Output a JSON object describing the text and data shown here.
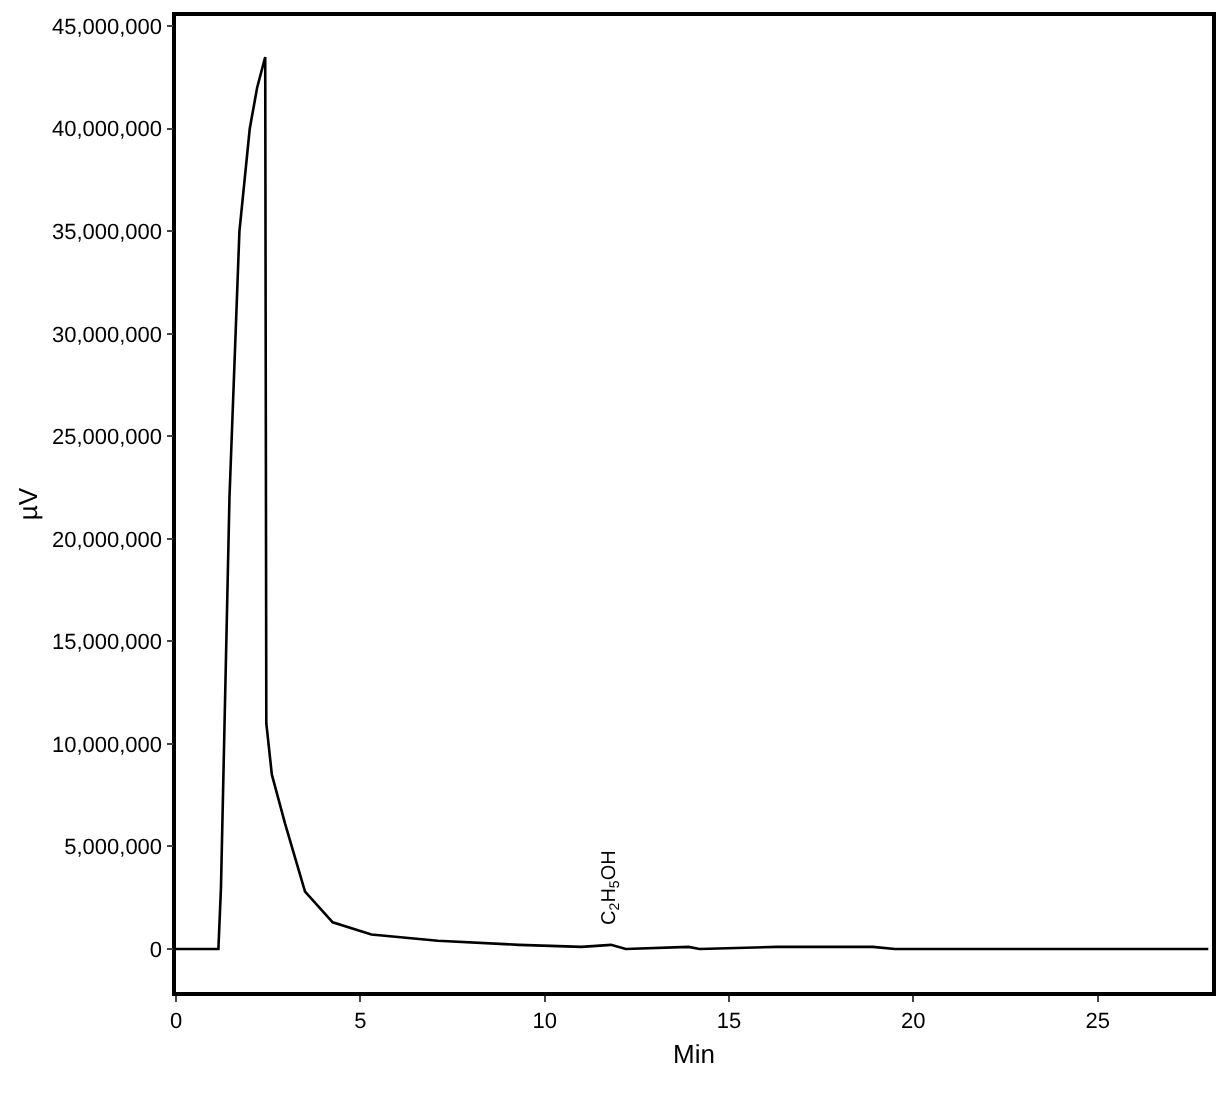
{
  "chart_data": {
    "type": "line",
    "xlabel": "Min",
    "ylabel": "µV",
    "x": [
      0,
      1.15,
      1.22,
      1.45,
      1.72,
      2.0,
      2.2,
      2.42,
      2.45,
      2.6,
      2.96,
      3.5,
      4.25,
      5.3,
      7.1,
      9.3,
      11,
      11.8,
      12.2,
      13.9,
      14.2,
      16.3,
      16.6,
      17.7,
      18.9,
      19.5,
      22,
      28
    ],
    "values": [
      0,
      0,
      3000000,
      22000000,
      35000000,
      40000000,
      42000000,
      43500000,
      11000000,
      8500000,
      6100000,
      2800000,
      1300000,
      700000,
      400000,
      200000,
      100000,
      200000,
      0,
      100000,
      0,
      100000,
      100000,
      100000,
      100000,
      0,
      0,
      0
    ],
    "color": "#000000",
    "xlim": [
      0,
      28.1
    ],
    "xticks": [
      0,
      5,
      10,
      15,
      20,
      25
    ],
    "ylim": [
      -2100000,
      45500000
    ],
    "yticks": [
      {
        "value": 0,
        "label": "0"
      },
      {
        "value": 5000000,
        "label": "5,000,000"
      },
      {
        "value": 10000000,
        "label": "10,000,000"
      },
      {
        "value": 15000000,
        "label": "15,000,000"
      },
      {
        "value": 20000000,
        "label": "20,000,000"
      },
      {
        "value": 25000000,
        "label": "25,000,000"
      },
      {
        "value": 30000000,
        "label": "30,000,000"
      },
      {
        "value": 35000000,
        "label": "35,000,000"
      },
      {
        "value": 40000000,
        "label": "40,000,000"
      },
      {
        "value": 45000000,
        "label": "45,000,000"
      }
    ],
    "annotations": [
      {
        "text": "C$_{2}$H$_{5}$OH",
        "x": 11.8,
        "y": 200000
      }
    ],
    "grid": false,
    "marker": "none",
    "line_style": "solid"
  }
}
